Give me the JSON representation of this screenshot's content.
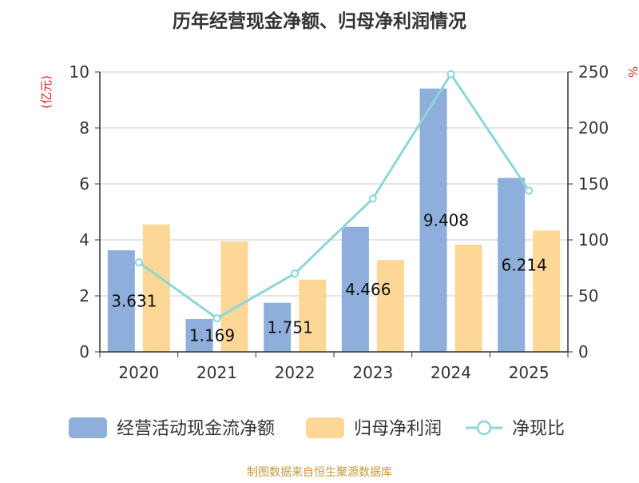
{
  "chart_data": {
    "type": "bar",
    "title": "历年经营现金净额、归母净利润情况",
    "categories": [
      "2020",
      "2021",
      "2022",
      "2023",
      "2024",
      "2025"
    ],
    "left_axis": {
      "unit": "(亿元)",
      "ylim": [
        0,
        10
      ],
      "ticks": [
        "0",
        "2",
        "4",
        "6",
        "8",
        "10"
      ]
    },
    "right_axis": {
      "unit": "%",
      "ylim": [
        0,
        250
      ],
      "ticks": [
        "0",
        "50",
        "100",
        "150",
        "200",
        "250"
      ]
    },
    "grid": true,
    "legend_position": "bottom",
    "series": [
      {
        "name": "经营活动现金流净额",
        "type": "bar",
        "axis": "left",
        "color": "#8eaedb",
        "values": [
          3.631,
          1.169,
          1.751,
          4.466,
          9.408,
          6.214
        ],
        "labels": [
          "3.631",
          "1.169",
          "1.751",
          "4.466",
          "9.408",
          "6.214"
        ]
      },
      {
        "name": "归母净利润",
        "type": "bar",
        "axis": "left",
        "color": "#fdd795",
        "values": [
          4.55,
          3.95,
          2.58,
          3.28,
          3.83,
          4.33
        ]
      },
      {
        "name": "净现比",
        "type": "line",
        "axis": "right",
        "color": "#8dd6d8",
        "values": [
          80,
          30,
          70,
          137,
          248,
          144
        ]
      }
    ]
  },
  "source_note": "制图数据来自恒生聚源数据库"
}
